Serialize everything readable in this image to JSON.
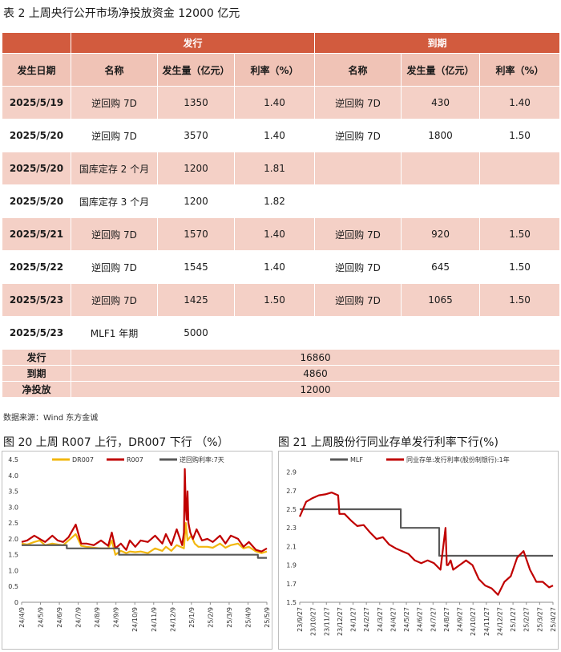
{
  "table": {
    "title": "表 2   上周央行公开市场净投放资金 12000 亿元",
    "group_issue": "发行",
    "group_maturity": "到期",
    "headers": [
      "发生日期",
      "名称",
      "发生量（亿元）",
      "利率（%）",
      "名称",
      "发生量（亿元）",
      "利率（%）"
    ],
    "rows": [
      [
        "2025/5/19",
        "逆回购 7D",
        "1350",
        "1.40",
        "逆回购 7D",
        "430",
        "1.40"
      ],
      [
        "2025/5/20",
        "逆回购 7D",
        "3570",
        "1.40",
        "逆回购 7D",
        "1800",
        "1.50"
      ],
      [
        "2025/5/20",
        "国库定存 2 个月",
        "1200",
        "1.81",
        "",
        "",
        ""
      ],
      [
        "2025/5/20",
        "国库定存 3 个月",
        "1200",
        "1.82",
        "",
        "",
        ""
      ],
      [
        "2025/5/21",
        "逆回购 7D",
        "1570",
        "1.40",
        "逆回购 7D",
        "920",
        "1.50"
      ],
      [
        "2025/5/22",
        "逆回购 7D",
        "1545",
        "1.40",
        "逆回购 7D",
        "645",
        "1.50"
      ],
      [
        "2025/5/23",
        "逆回购 7D",
        "1425",
        "1.50",
        "逆回购 7D",
        "1065",
        "1.50"
      ],
      [
        "2025/5/23",
        "MLF1 年期",
        "5000",
        "",
        "",
        "",
        ""
      ]
    ],
    "summary": [
      {
        "label": "发行",
        "value": "16860"
      },
      {
        "label": "到期",
        "value": "4860"
      },
      {
        "label": "净投放",
        "value": "12000"
      }
    ],
    "source": "数据来源：Wind 东方金诚"
  },
  "colors": {
    "header": "#d25b3e",
    "subheader": "#f0c3b6",
    "band": "#f4d0c6",
    "dr007": "#f2b70f",
    "r007": "#c00000",
    "policy": "#595959"
  },
  "chart_data": [
    {
      "type": "line",
      "title": "图 20  上周 R007 上行，DR007 下行 （%）",
      "ylim": [
        0,
        4.5
      ],
      "yticks": [
        "0",
        "0.5",
        "1.0",
        "1.5",
        "2.0",
        "2.5",
        "3.0",
        "3.5",
        "4.0",
        "4.5"
      ],
      "x_tick_labels": [
        "24/4/9",
        "24/5/9",
        "24/6/9",
        "24/7/9",
        "24/8/9",
        "24/9/9",
        "24/10/9",
        "24/11/9",
        "24/12/9",
        "25/1/9",
        "25/2/9",
        "25/3/9",
        "25/4/9",
        "25/5/9"
      ],
      "legend": "top",
      "series": [
        {
          "name": "DR007",
          "x": [
            0,
            0.3,
            0.7,
            1,
            1.3,
            1.7,
            2,
            2.3,
            2.6,
            3,
            3.3,
            3.6,
            4,
            4.4,
            4.8,
            5,
            5.2,
            5.5,
            5.8,
            6,
            6.3,
            6.6,
            7,
            7.4,
            7.8,
            8,
            8.3,
            8.6,
            9,
            9.1,
            9.2,
            9.4,
            9.6,
            9.8,
            10,
            10.3,
            10.6,
            11,
            11.3,
            11.6,
            12,
            12.3,
            12.6,
            13,
            13.3,
            13.6
          ],
          "values": [
            1.85,
            1.82,
            1.9,
            1.95,
            1.8,
            1.85,
            1.82,
            1.8,
            1.95,
            2.15,
            1.78,
            1.75,
            1.72,
            1.7,
            1.7,
            1.95,
            1.5,
            1.62,
            1.55,
            1.6,
            1.58,
            1.6,
            1.55,
            1.7,
            1.62,
            1.75,
            1.62,
            1.8,
            1.7,
            2.5,
            1.95,
            2.1,
            1.85,
            1.75,
            1.75,
            1.75,
            1.72,
            1.85,
            1.72,
            1.8,
            1.85,
            1.7,
            1.75,
            1.6,
            1.55,
            1.6
          ]
        },
        {
          "name": "R007",
          "x": [
            0,
            0.3,
            0.7,
            1,
            1.3,
            1.7,
            2,
            2.3,
            2.6,
            3,
            3.3,
            3.6,
            4,
            4.4,
            4.8,
            5,
            5.2,
            5.5,
            5.8,
            6,
            6.3,
            6.6,
            7,
            7.4,
            7.8,
            8,
            8.3,
            8.6,
            8.9,
            9,
            9.05,
            9.1,
            9.15,
            9.2,
            9.25,
            9.35,
            9.5,
            9.7,
            10,
            10.3,
            10.6,
            11,
            11.3,
            11.6,
            12,
            12.3,
            12.6,
            13,
            13.3,
            13.6
          ],
          "values": [
            1.9,
            1.95,
            2.1,
            2.0,
            1.9,
            2.1,
            1.95,
            1.9,
            2.05,
            2.45,
            1.85,
            1.85,
            1.8,
            1.95,
            1.78,
            2.2,
            1.7,
            1.85,
            1.65,
            1.95,
            1.75,
            1.95,
            1.9,
            2.1,
            1.85,
            2.15,
            1.8,
            2.3,
            1.8,
            2.2,
            4.2,
            3.0,
            2.6,
            3.5,
            2.5,
            2.2,
            2.0,
            2.3,
            1.95,
            2.0,
            1.9,
            2.1,
            1.85,
            2.1,
            2.0,
            1.75,
            1.9,
            1.65,
            1.6,
            1.7
          ]
        },
        {
          "name": "逆回购利率:7天",
          "x": [
            0,
            2.5,
            2.5,
            5.4,
            5.4,
            13.1,
            13.1,
            13.6
          ],
          "values": [
            1.8,
            1.8,
            1.7,
            1.7,
            1.5,
            1.5,
            1.4,
            1.4
          ]
        }
      ]
    },
    {
      "type": "line",
      "title": "图 21 上周股份行同业存单发行利率下行(%)",
      "ylim": [
        1.5,
        3.0
      ],
      "yticks": [
        "1.5",
        "1.7",
        "1.9",
        "2.1",
        "2.3",
        "2.5",
        "2.7",
        "2.9"
      ],
      "x_tick_labels": [
        "23/9/27",
        "23/10/27",
        "23/11/27",
        "23/12/27",
        "24/1/27",
        "24/2/27",
        "24/3/27",
        "24/4/27",
        "24/5/27",
        "24/6/27",
        "24/7/27",
        "24/8/27",
        "24/9/27",
        "24/10/27",
        "24/11/27",
        "24/12/27",
        "25/1/27",
        "25/2/27",
        "25/3/27",
        "25/4/27"
      ],
      "legend": "top",
      "series": [
        {
          "name": "MLF",
          "x": [
            0,
            7.9,
            7.9,
            10.9,
            10.9,
            19.8
          ],
          "values": [
            2.5,
            2.5,
            2.3,
            2.3,
            2.0,
            2.0
          ]
        },
        {
          "name": "同业存单:发行利率(股份制银行):1年",
          "x": [
            0,
            0.5,
            1,
            1.5,
            2,
            2.5,
            3,
            3.1,
            3.5,
            4,
            4.5,
            5,
            5.5,
            6,
            6.5,
            7,
            7.5,
            8,
            8.5,
            9,
            9.5,
            10,
            10.5,
            11,
            11.4,
            11.5,
            11.6,
            11.8,
            12,
            12.5,
            13,
            13.5,
            14,
            14.5,
            15,
            15.5,
            16,
            16.5,
            17,
            17.5,
            18,
            18.5,
            19,
            19.5,
            19.8
          ],
          "values": [
            2.42,
            2.58,
            2.62,
            2.65,
            2.66,
            2.68,
            2.65,
            2.45,
            2.45,
            2.38,
            2.32,
            2.33,
            2.25,
            2.18,
            2.2,
            2.12,
            2.08,
            2.05,
            2.02,
            1.95,
            1.92,
            1.95,
            1.92,
            1.85,
            2.3,
            1.9,
            1.9,
            1.95,
            1.85,
            1.9,
            1.95,
            1.9,
            1.75,
            1.68,
            1.65,
            1.58,
            1.72,
            1.78,
            1.98,
            2.05,
            1.85,
            1.72,
            1.72,
            1.66,
            1.68
          ]
        }
      ]
    }
  ]
}
